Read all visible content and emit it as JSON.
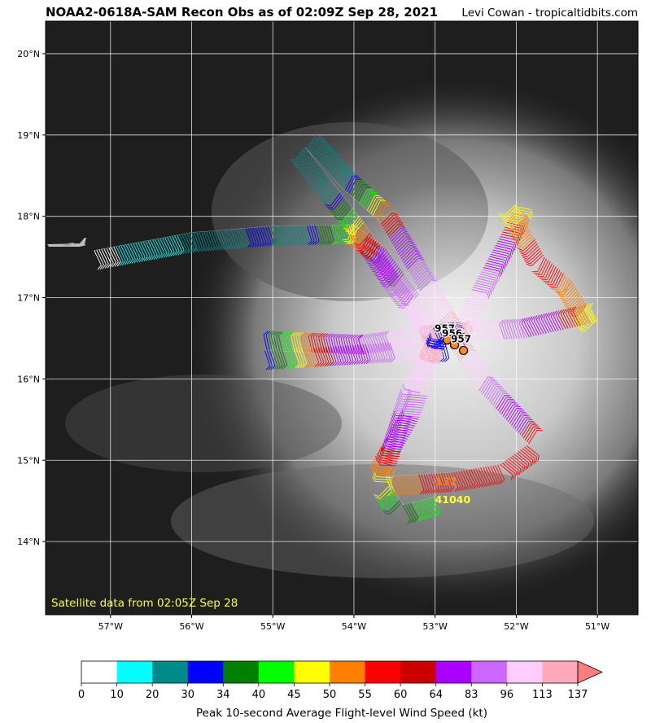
{
  "header": {
    "title": "NOAA2-0618A-SAM Recon Obs as of 02:09Z Sep 28, 2021",
    "credit": "Levi Cowan - tropicaltidbits.com"
  },
  "map": {
    "lon_range": [
      -57.8,
      -50.5
    ],
    "lat_range": [
      13.1,
      20.4
    ],
    "lon_ticks": [
      {
        "value": -57,
        "label": "57°W"
      },
      {
        "value": -56,
        "label": "56°W"
      },
      {
        "value": -55,
        "label": "55°W"
      },
      {
        "value": -54,
        "label": "54°W"
      },
      {
        "value": -53,
        "label": "53°W"
      },
      {
        "value": -52,
        "label": "52°W"
      },
      {
        "value": -51,
        "label": "51°W"
      }
    ],
    "lat_ticks": [
      {
        "value": 14,
        "label": "14°N"
      },
      {
        "value": 15,
        "label": "15°N"
      },
      {
        "value": 16,
        "label": "16°N"
      },
      {
        "value": 17,
        "label": "17°N"
      },
      {
        "value": 18,
        "label": "18°N"
      },
      {
        "value": 19,
        "label": "19°N"
      },
      {
        "value": 20,
        "label": "20°N"
      }
    ],
    "satellite_label": "Satellite data from 02:05Z Sep 28",
    "center": {
      "lon": -52.85,
      "lat": 16.45
    },
    "pressure_labels": [
      {
        "text": "957",
        "lon": -52.88,
        "lat": 16.58
      },
      {
        "text": "956",
        "lon": -52.79,
        "lat": 16.52
      },
      {
        "text": "957",
        "lon": -52.68,
        "lat": 16.45
      }
    ],
    "latest_obs": {
      "wind_label": "132",
      "altitude_label": "41040",
      "wind_color": "#ff7f0e",
      "altitude_color": "#ffff33",
      "lon": -53.0,
      "lat": 14.65
    },
    "flight_path": [
      [
        -57.2,
        17.58
      ],
      [
        -56.0,
        17.8
      ],
      [
        -55.0,
        17.88
      ],
      [
        -54.0,
        17.9
      ],
      [
        -53.6,
        17.6
      ],
      [
        -53.2,
        17.05
      ],
      [
        -52.85,
        16.5
      ],
      [
        -53.7,
        17.95
      ],
      [
        -54.2,
        18.4
      ],
      [
        -54.6,
        18.85
      ],
      [
        -53.9,
        17.95
      ],
      [
        -53.4,
        17.2
      ],
      [
        -52.85,
        16.5
      ],
      [
        -52.55,
        17.1
      ],
      [
        -52.2,
        17.75
      ],
      [
        -52.0,
        18.15
      ],
      [
        -51.65,
        17.5
      ],
      [
        -51.3,
        17.2
      ],
      [
        -51.0,
        16.7
      ],
      [
        -51.9,
        16.5
      ],
      [
        -52.85,
        16.45
      ],
      [
        -53.9,
        16.3
      ],
      [
        -55.1,
        16.35
      ],
      [
        -53.5,
        16.45
      ],
      [
        -52.85,
        16.45
      ],
      [
        -53.2,
        15.5
      ],
      [
        -53.6,
        14.8
      ],
      [
        -52.8,
        14.85
      ],
      [
        -52.2,
        14.95
      ],
      [
        -51.85,
        15.2
      ],
      [
        -52.5,
        15.9
      ],
      [
        -52.85,
        16.45
      ],
      [
        -53.2,
        15.8
      ],
      [
        -53.55,
        14.7
      ],
      [
        -53.4,
        14.45
      ],
      [
        -53.0,
        14.55
      ]
    ]
  },
  "colorbar": {
    "label": "Peak 10-second Average Flight-level Wind Speed (kt)",
    "bins": [
      {
        "value": "0",
        "color": "#ffffff"
      },
      {
        "value": "10",
        "color": "#00ffff"
      },
      {
        "value": "20",
        "color": "#008b8b"
      },
      {
        "value": "30",
        "color": "#0000ff"
      },
      {
        "value": "34",
        "color": "#008000"
      },
      {
        "value": "40",
        "color": "#00ff00"
      },
      {
        "value": "45",
        "color": "#ffff00"
      },
      {
        "value": "50",
        "color": "#ff7f00"
      },
      {
        "value": "55",
        "color": "#ff0000"
      },
      {
        "value": "60",
        "color": "#cc0000"
      },
      {
        "value": "64",
        "color": "#aa00ff"
      },
      {
        "value": "83",
        "color": "#cc66ff"
      },
      {
        "value": "96",
        "color": "#ffccff"
      },
      {
        "value": "113",
        "color": "#ffaabb"
      }
    ],
    "last_tick": "137"
  }
}
